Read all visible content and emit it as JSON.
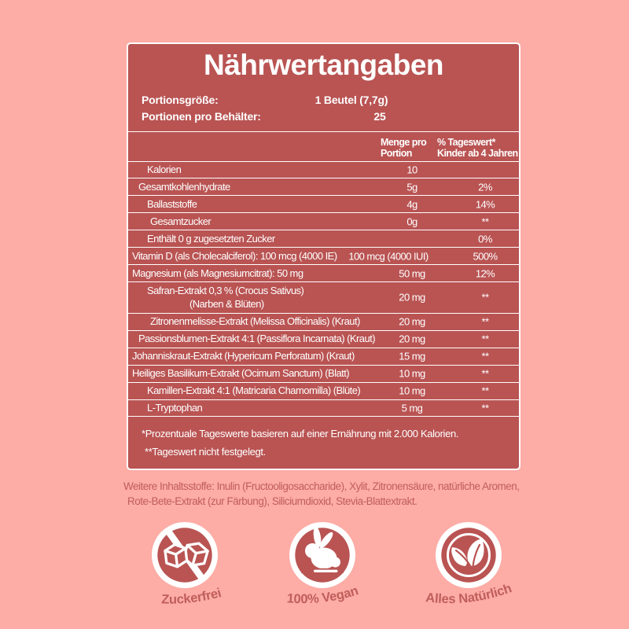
{
  "colors": {
    "background": "#FDACA6",
    "panel": "#B95453",
    "separator": "#FFFFFF",
    "accent_text": "#C05E5A"
  },
  "panel": {
    "title": "Nährwertangaben",
    "serving": {
      "size_label": "Portionsgröße:",
      "size_value": "1 Beutel (7,7g)",
      "count_label": "Portionen pro Behälter:",
      "count_value": "25"
    },
    "table": {
      "header": {
        "amount_line1": "Menge pro",
        "amount_line2": "Portion",
        "dv_line1": "% Tageswert*",
        "dv_line2": "Kinder ab 4 Jahren"
      },
      "rows": [
        {
          "label": "Kalorien",
          "amount": "10",
          "dv": "",
          "indent": 2
        },
        {
          "label": "Gesamtkohlenhydrate",
          "amount": "5g",
          "dv": "2%",
          "indent": 1
        },
        {
          "label": "Ballaststoffe",
          "amount": "4g",
          "dv": "14%",
          "indent": 2
        },
        {
          "label": "Gesamtzucker",
          "amount": "0g",
          "dv": "**",
          "indent": 3
        },
        {
          "label": "Enthält 0 g zugesetzten Zucker",
          "amount": "",
          "dv": "0%",
          "indent": 2
        },
        {
          "label": "Vitamin D (als Cholecalciferol): 100 mcg (4000 IE)",
          "amount": "100 mcg (4000 IUI)",
          "dv": "500%",
          "indent": 0
        },
        {
          "label": "Magnesium (als Magnesiumcitrat): 50 mg",
          "amount": "50 mg",
          "dv": "12%",
          "indent": 0
        },
        {
          "label": "Safran-Extrakt 0,3 % (Crocus Sativus)",
          "label2": "(Narben & Blüten)",
          "amount": "20 mg",
          "dv": "**",
          "indent": 2
        },
        {
          "label": "Zitronenmelisse-Extrakt (Melissa Officinalis) (Kraut)",
          "amount": "20 mg",
          "dv": "**",
          "indent": 3
        },
        {
          "label": "Passionsblumen-Extrakt 4:1 (Passiflora Incarnata) (Kraut)",
          "amount": "20 mg",
          "dv": "**",
          "indent": 1
        },
        {
          "label": "Johanniskraut-Extrakt (Hypericum Perforatum) (Kraut)",
          "amount": "15 mg",
          "dv": "**",
          "indent": 0
        },
        {
          "label": "Heiliges Basilikum-Extrakt (Ocimum Sanctum) (Blatt)",
          "amount": "10 mg",
          "dv": "**",
          "indent": 0
        },
        {
          "label": "Kamillen-Extrakt 4:1 (Matricaria Chamomilla) (Blüte)",
          "amount": "10 mg",
          "dv": "**",
          "indent": 2
        },
        {
          "label": "L-Tryptophan",
          "amount": "5 mg",
          "dv": "**",
          "indent": 2
        }
      ]
    },
    "footnotes": [
      "*Prozentuale Tageswerte basieren auf einer Ernährung mit 2.000 Kalorien.",
      "**Tageswert nicht festgelegt."
    ]
  },
  "other_ingredients": {
    "line1": "Weitere Inhaltsstoffe: Inulin (Fructooligosaccharide), Xylit, Zitronensäure, natürliche Aromen,",
    "line2": "Rote-Bete-Extrakt (zur Färbung), Siliciumdioxid, Stevia-Blattextrakt."
  },
  "badges": [
    {
      "label": "Zuckerfrei",
      "icon": "sugar-free-icon"
    },
    {
      "label": "100% Vegan",
      "icon": "vegan-rabbit-icon"
    },
    {
      "label": "Alles Natürlich",
      "icon": "natural-leaves-icon"
    }
  ]
}
